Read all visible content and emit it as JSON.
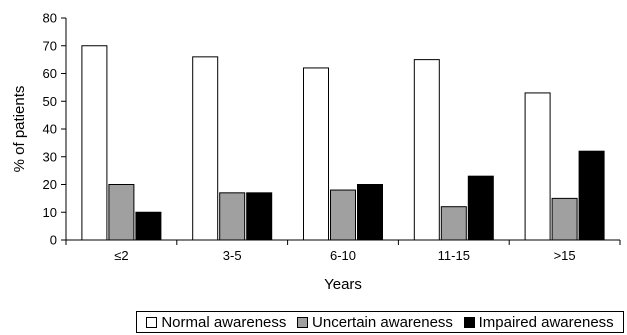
{
  "chart_data": {
    "type": "bar",
    "categories": [
      "≤2",
      "3-5",
      "6-10",
      "11-15",
      ">15"
    ],
    "series": [
      {
        "name": "Normal awareness",
        "values": [
          70,
          66,
          62,
          65,
          53
        ],
        "color": "#ffffff"
      },
      {
        "name": "Uncertain awareness",
        "values": [
          20,
          17,
          18,
          12,
          15
        ],
        "color": "#a0a0a0"
      },
      {
        "name": "Impaired awareness",
        "values": [
          10,
          17,
          20,
          23,
          32
        ],
        "color": "#000000"
      }
    ],
    "xlabel": "Years",
    "ylabel": "% of patients",
    "ylim": [
      0,
      80
    ],
    "yticks": [
      0,
      10,
      20,
      30,
      40,
      50,
      60,
      70,
      80
    ],
    "grid": false,
    "legend_position": "bottom"
  }
}
